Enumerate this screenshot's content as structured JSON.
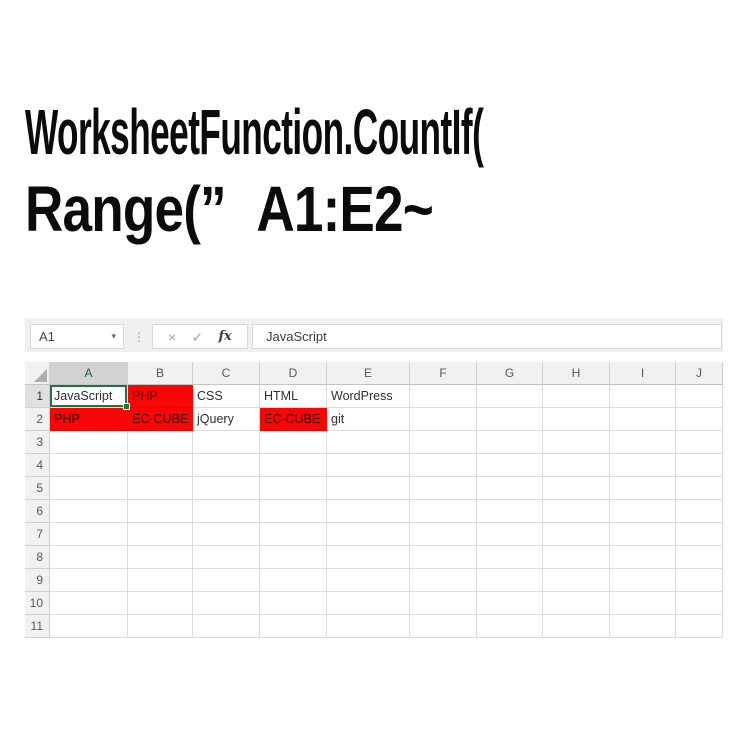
{
  "title": {
    "line1": "WorksheetFunction.CountIf(",
    "line2": "Range(” A1:E2~"
  },
  "formula_bar": {
    "name_box_value": "A1",
    "formula_value": "JavaScript",
    "cancel_label": "×",
    "enter_label": "✓",
    "insert_function_label": "fx"
  },
  "icons": {
    "name_box_dropdown": "▾",
    "separator_dots": "⋮"
  },
  "grid": {
    "selected_cell": "A1",
    "columns": [
      "A",
      "B",
      "C",
      "D",
      "E",
      "F",
      "G",
      "H",
      "I",
      "J"
    ],
    "rows": [
      "1",
      "2",
      "3",
      "4",
      "5",
      "6",
      "7",
      "8",
      "9",
      "10",
      "11"
    ],
    "cells": {
      "A1": "JavaScript",
      "B1": "PHP",
      "C1": "CSS",
      "D1": "HTML",
      "E1": "WordPress",
      "A2": "PHP",
      "B2": "EC-CUBE",
      "C2": "jQuery",
      "D2": "EC-CUBE",
      "E2": "git"
    },
    "red_cells": [
      "B1",
      "A2",
      "B2",
      "D2"
    ]
  },
  "colors": {
    "highlight_fill": "#f90505",
    "selection_green": "#217346",
    "title_text": "#0b0b0b"
  }
}
